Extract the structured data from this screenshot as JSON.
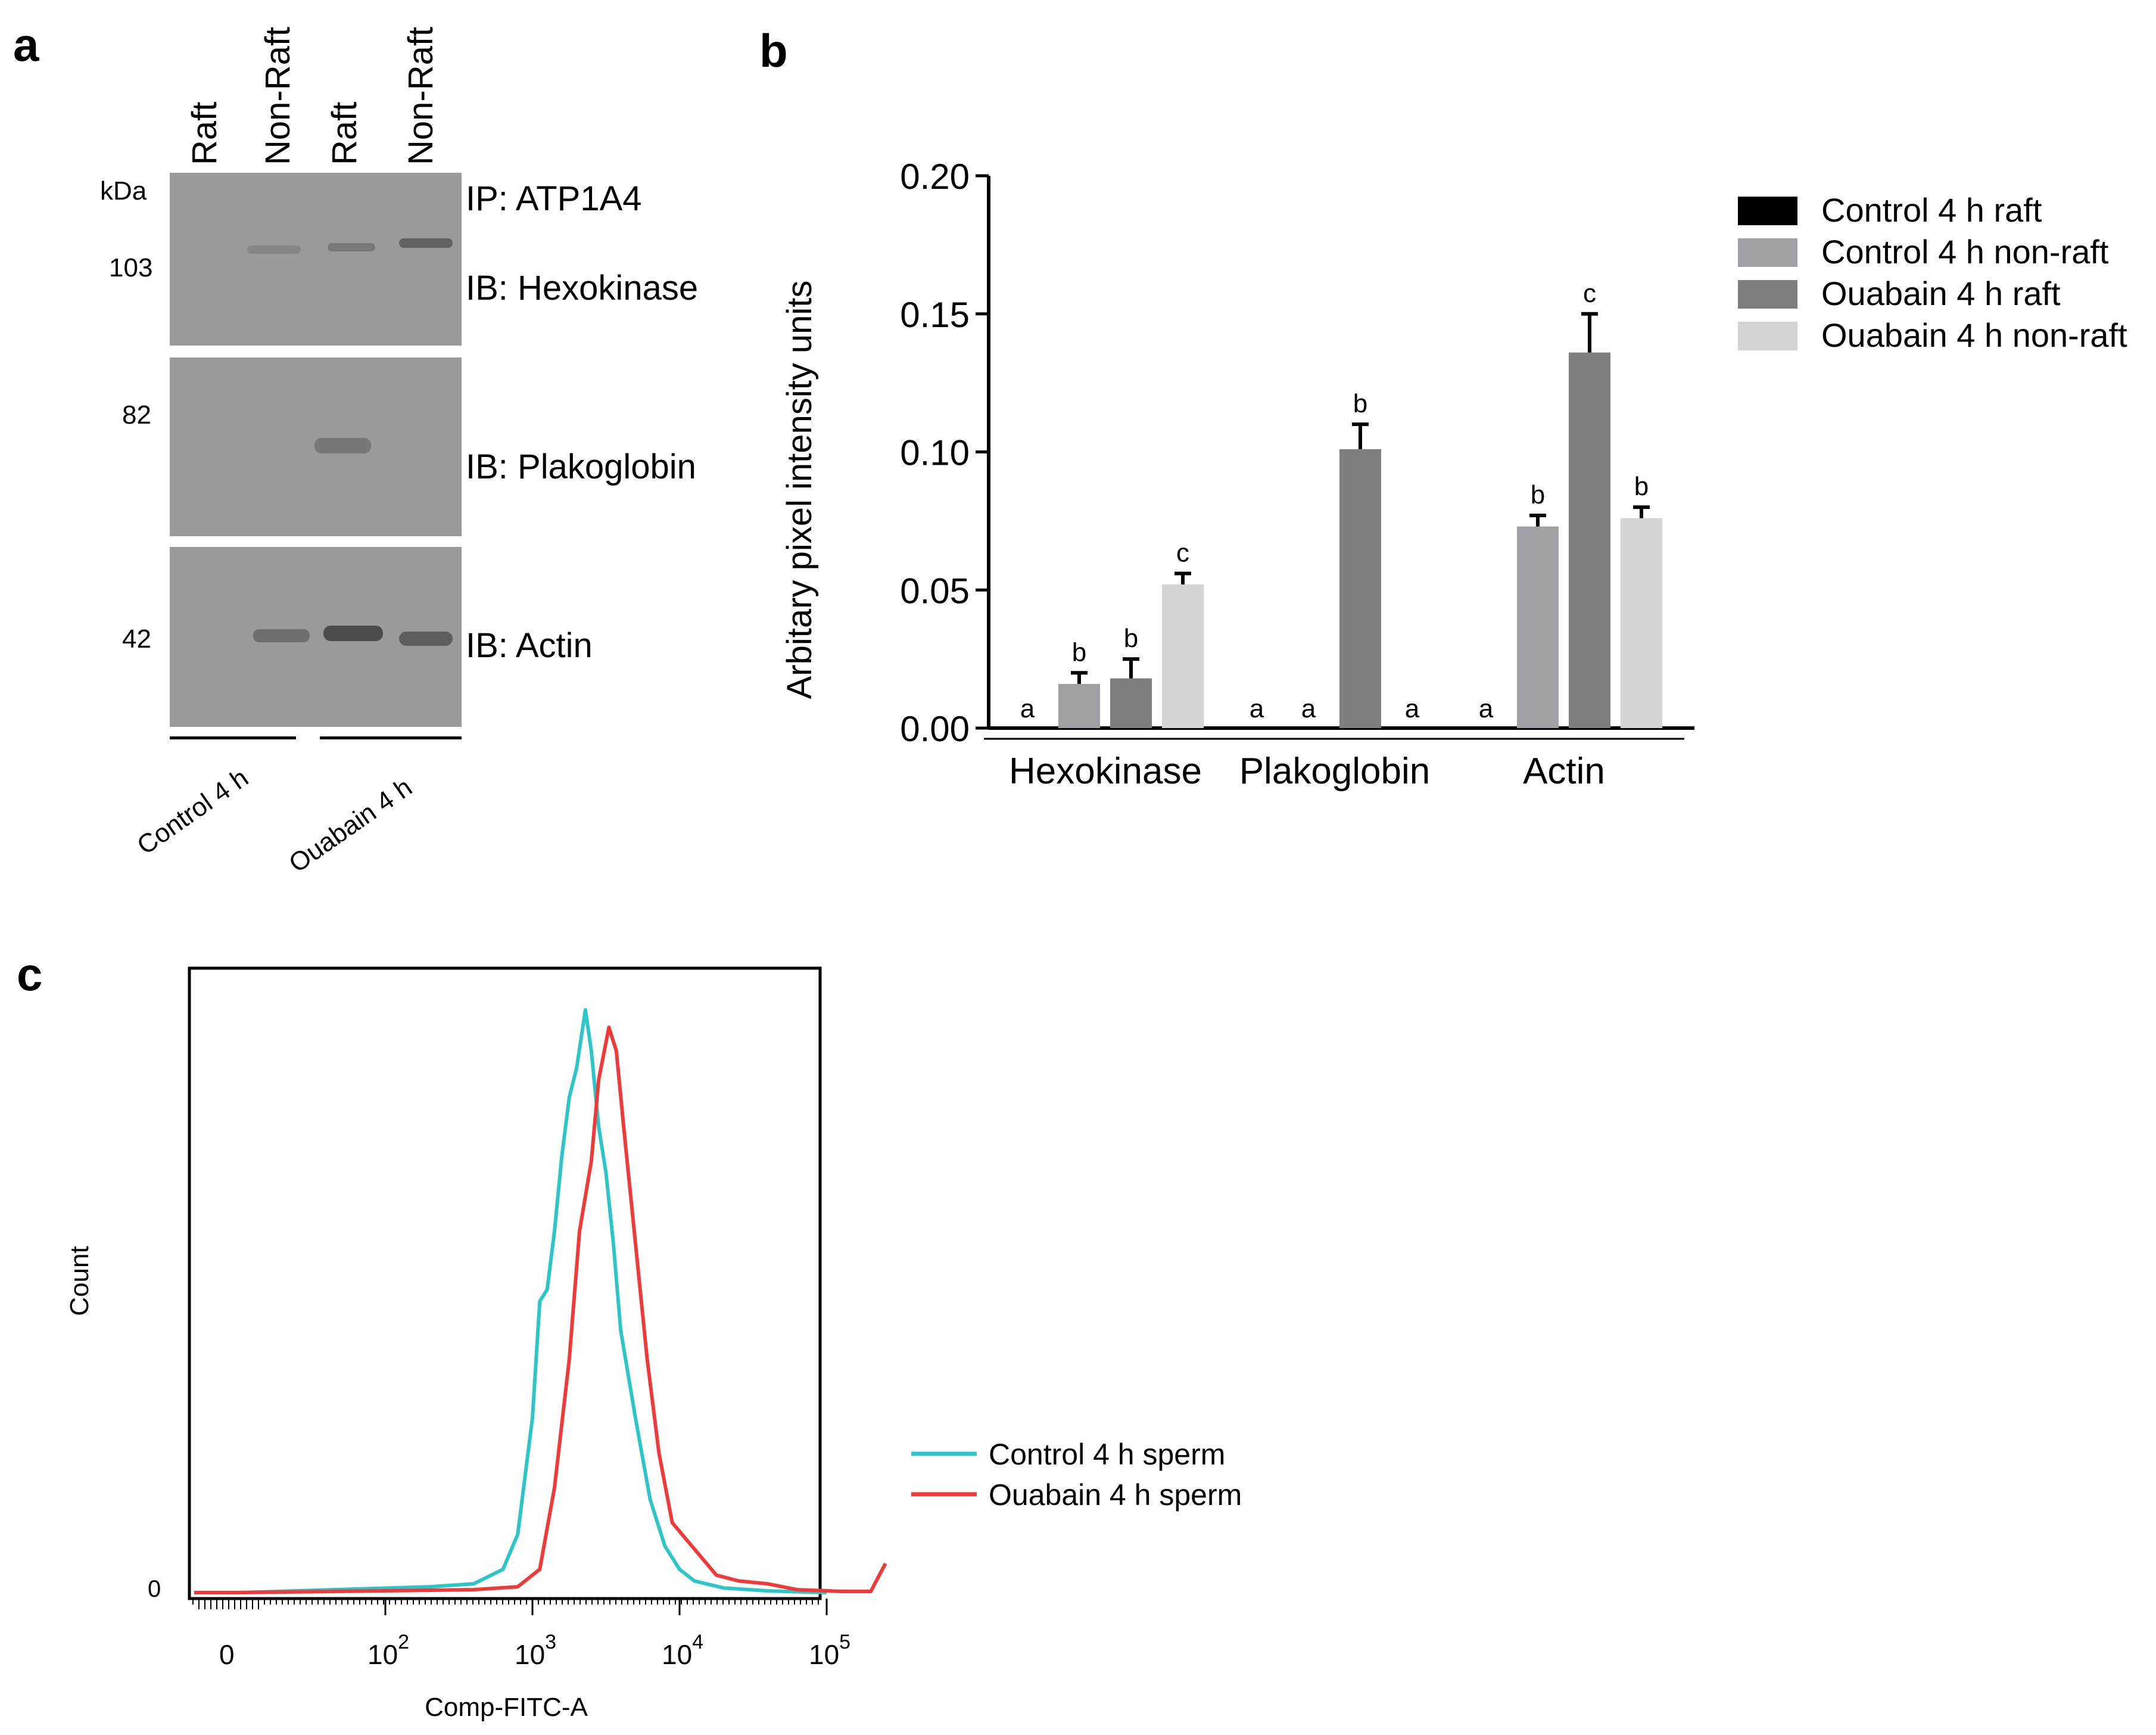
{
  "panels": {
    "a": "a",
    "b": "b",
    "c": "c"
  },
  "blot": {
    "lanes": [
      "Raft",
      "Non-Raft",
      "Raft",
      "Non-Raft"
    ],
    "kda_label": "kDa",
    "ip_label": "IP: ATP1A4",
    "rows": [
      {
        "marker": "103",
        "label": "IB: Hexokinase",
        "band_intensity": [
          0.05,
          0.35,
          0.45,
          0.7
        ]
      },
      {
        "marker": "82",
        "label": "IB: Plakoglobin",
        "band_intensity": [
          0.0,
          0.0,
          0.6,
          0.0
        ]
      },
      {
        "marker": "42",
        "label": "IB: Actin",
        "band_intensity": [
          0.0,
          0.55,
          0.85,
          0.6
        ]
      }
    ],
    "groups": [
      "Control 4 h",
      "Ouabain 4 h"
    ]
  },
  "chart_data": [
    {
      "type": "bar",
      "ylabel": "Arbitary pixel intensity units",
      "ylim": [
        0,
        0.2
      ],
      "yticks": [
        "0.00",
        "0.05",
        "0.10",
        "0.15",
        "0.20"
      ],
      "ytick_values": [
        0,
        0.05,
        0.1,
        0.15,
        0.2
      ],
      "categories": [
        "Hexokinase",
        "Plakoglobin",
        "Actin"
      ],
      "series": [
        {
          "name": "Control 4 h raft",
          "color": "#000000",
          "values": [
            0,
            0,
            0
          ],
          "errors": [
            0,
            0,
            0
          ],
          "letters": [
            "a",
            "a",
            "a"
          ]
        },
        {
          "name": "Control 4 h non-raft",
          "color": "#a0a0a4",
          "values": [
            0.016,
            0,
            0.073
          ],
          "errors": [
            0.004,
            0,
            0.004
          ],
          "letters": [
            "b",
            "a",
            "b"
          ]
        },
        {
          "name": "Ouabain 4 h raft",
          "color": "#7e7e7e",
          "values": [
            0.018,
            0.101,
            0.136
          ],
          "errors": [
            0.007,
            0.009,
            0.014
          ],
          "letters": [
            "b",
            "b",
            "c"
          ]
        },
        {
          "name": "Ouabain 4 h non-raft",
          "color": "#d4d4d4",
          "values": [
            0.052,
            0,
            0.076
          ],
          "errors": [
            0.004,
            0,
            0.004
          ],
          "letters": [
            "c",
            "a",
            "b"
          ]
        }
      ]
    },
    {
      "type": "line",
      "xlabel": "Comp-FITC-A",
      "ylabel": "Count",
      "ytick_label": "0",
      "xtick_labels": [
        {
          "base": "0",
          "exp": ""
        },
        {
          "base": "10",
          "exp": "2"
        },
        {
          "base": "10",
          "exp": "3"
        },
        {
          "base": "10",
          "exp": "4"
        },
        {
          "base": "10",
          "exp": "5"
        }
      ],
      "xtick_log_values": [
        null,
        2,
        3,
        4,
        5
      ],
      "series": [
        {
          "name": "Control 4 h sperm",
          "color": "#2cc6c8",
          "points": [
            [
              0.7,
              0.0
            ],
            [
              1.0,
              0.0
            ],
            [
              2.3,
              0.01
            ],
            [
              2.6,
              0.015
            ],
            [
              2.8,
              0.04
            ],
            [
              2.9,
              0.1
            ],
            [
              3.0,
              0.3
            ],
            [
              3.05,
              0.5
            ],
            [
              3.1,
              0.52
            ],
            [
              3.15,
              0.62
            ],
            [
              3.2,
              0.75
            ],
            [
              3.25,
              0.85
            ],
            [
              3.3,
              0.9
            ],
            [
              3.36,
              1.0
            ],
            [
              3.4,
              0.93
            ],
            [
              3.45,
              0.8
            ],
            [
              3.5,
              0.72
            ],
            [
              3.55,
              0.6
            ],
            [
              3.6,
              0.45
            ],
            [
              3.7,
              0.3
            ],
            [
              3.8,
              0.16
            ],
            [
              3.9,
              0.08
            ],
            [
              4.0,
              0.04
            ],
            [
              4.1,
              0.02
            ],
            [
              4.3,
              0.008
            ],
            [
              4.6,
              0.003
            ],
            [
              5.0,
              0.0
            ]
          ]
        },
        {
          "name": "Ouabain 4 h sperm",
          "color": "#f03a3a",
          "points": [
            [
              0.7,
              0.0
            ],
            [
              1.0,
              0.0
            ],
            [
              2.6,
              0.005
            ],
            [
              2.9,
              0.01
            ],
            [
              3.05,
              0.04
            ],
            [
              3.15,
              0.18
            ],
            [
              3.25,
              0.4
            ],
            [
              3.32,
              0.62
            ],
            [
              3.4,
              0.74
            ],
            [
              3.45,
              0.88
            ],
            [
              3.52,
              0.97
            ],
            [
              3.57,
              0.93
            ],
            [
              3.62,
              0.8
            ],
            [
              3.7,
              0.6
            ],
            [
              3.78,
              0.4
            ],
            [
              3.86,
              0.24
            ],
            [
              3.95,
              0.12
            ],
            [
              4.05,
              0.09
            ],
            [
              4.15,
              0.06
            ],
            [
              4.25,
              0.03
            ],
            [
              4.4,
              0.02
            ],
            [
              4.6,
              0.015
            ],
            [
              4.8,
              0.005
            ],
            [
              5.1,
              0.002
            ],
            [
              5.3,
              0.002
            ],
            [
              5.4,
              0.05
            ]
          ]
        }
      ]
    }
  ]
}
